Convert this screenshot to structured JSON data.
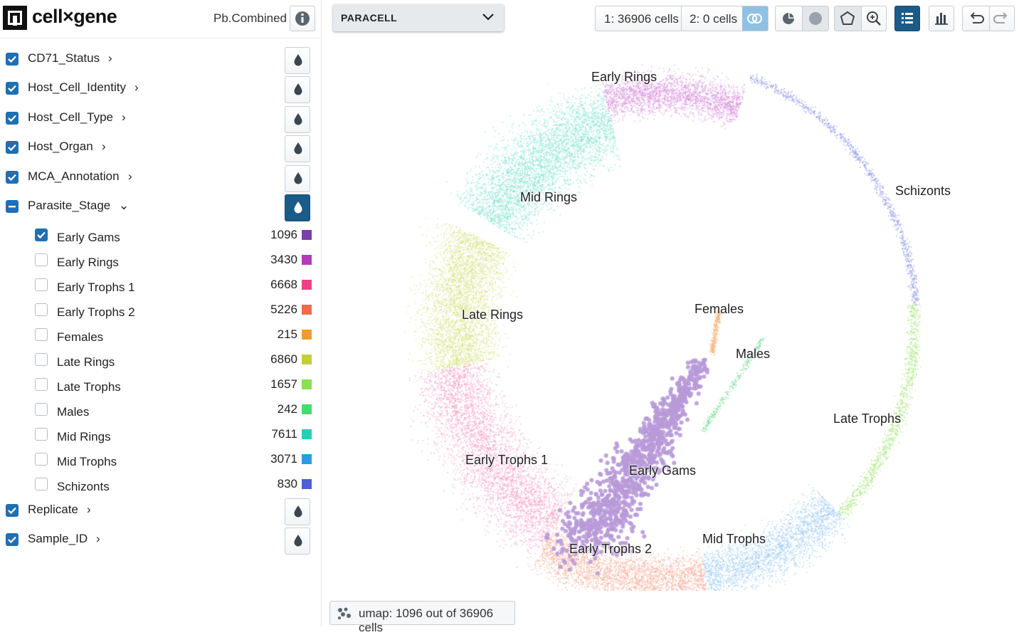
{
  "app": {
    "logo_text": "cell×gene",
    "dataset_name": "Pb.Combined"
  },
  "categories": [
    {
      "label": "CD71_Status",
      "checked": "checked",
      "chevron": "›"
    },
    {
      "label": "Host_Cell_Identity",
      "checked": "checked",
      "chevron": "›"
    },
    {
      "label": "Host_Cell_Type",
      "checked": "checked",
      "chevron": "›"
    },
    {
      "label": "Host_Organ",
      "checked": "checked",
      "chevron": "›"
    },
    {
      "label": "MCA_Annotation",
      "checked": "checked",
      "chevron": "›"
    },
    {
      "label": "Parasite_Stage",
      "checked": "indeterminate",
      "chevron": "⌄",
      "color_active": true
    },
    {
      "label": "Replicate",
      "checked": "checked",
      "chevron": "›"
    },
    {
      "label": "Sample_ID",
      "checked": "checked",
      "chevron": "›"
    }
  ],
  "parasite_stage_values": [
    {
      "label": "Early Gams",
      "count": "1096",
      "color": "#7b3fa8",
      "checked": true
    },
    {
      "label": "Early Rings",
      "count": "3430",
      "color": "#b13cb8",
      "checked": false
    },
    {
      "label": "Early Trophs 1",
      "count": "6668",
      "color": "#ef3f86",
      "checked": false
    },
    {
      "label": "Early Trophs 2",
      "count": "5226",
      "color": "#f46a4a",
      "checked": false
    },
    {
      "label": "Females",
      "count": "215",
      "color": "#f29a2e",
      "checked": false
    },
    {
      "label": "Late Rings",
      "count": "6860",
      "color": "#c3cf3a",
      "checked": false
    },
    {
      "label": "Late Trophs",
      "count": "1657",
      "color": "#8be04d",
      "checked": false
    },
    {
      "label": "Males",
      "count": "242",
      "color": "#3fe06d",
      "checked": false
    },
    {
      "label": "Mid Rings",
      "count": "7611",
      "color": "#22d1b8",
      "checked": false
    },
    {
      "label": "Mid Trophs",
      "count": "3071",
      "color": "#2a9ce0",
      "checked": false
    },
    {
      "label": "Schizonts",
      "count": "830",
      "color": "#4e5ed8",
      "checked": false
    }
  ],
  "toolbar": {
    "embedding_dropdown": "PARACELL",
    "set1_label": "1: 36906 cells",
    "set2_label": "2: 0 cells"
  },
  "plot_labels": [
    "Early Rings",
    "Mid Rings",
    "Schizonts",
    "Late Rings",
    "Females",
    "Males",
    "Late Trophs",
    "Early Trophs 1",
    "Early Gams",
    "Mid Trophs",
    "Early Trophs 2"
  ],
  "footer": {
    "text": "umap: 1096 out of 36906 cells"
  },
  "colors": {
    "accent": "#1f6fb3",
    "active_button": "#1b5b88",
    "selected_cells": "#b89ad8"
  }
}
